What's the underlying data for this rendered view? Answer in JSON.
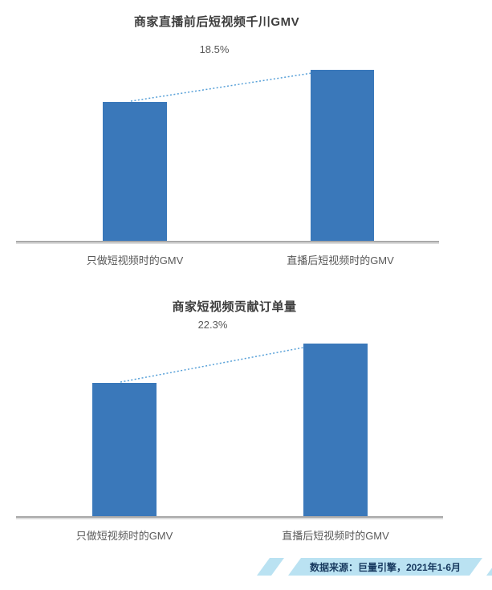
{
  "chart_data": [
    {
      "type": "bar",
      "title": "商家直播前后短视频千川GMV",
      "annotation": "18.5%",
      "categories": [
        "只做短视频时的GMV",
        "直播后短视频时的GMV"
      ],
      "values": [
        100,
        123
      ],
      "value_basis": "relative index estimated from bar heights; first bar = 100; y-axis hidden",
      "legend": "none",
      "grid": false,
      "connector": "dotted line rising from bar 1 top to bar 2 top"
    },
    {
      "type": "bar",
      "title": "商家短视频贡献订单量",
      "annotation": "22.3%",
      "categories": [
        "只做短视频时的GMV",
        "直播后短视频时的GMV"
      ],
      "values": [
        100,
        129
      ],
      "value_basis": "relative index estimated from bar heights; first bar = 100; y-axis hidden",
      "legend": "none",
      "grid": false,
      "connector": "dotted line rising from bar 1 top to bar 2 top"
    }
  ],
  "footer": {
    "source_text": "数据来源：巨量引擎，2021年1-6月"
  },
  "colors": {
    "bar": "#3a78ba",
    "dotted_line": "#57a0d8",
    "axis": "#a9a9a9",
    "title": "#3d3d3d",
    "label": "#595959",
    "ribbon_bg": "#bae2f2",
    "ribbon_text": "#17395f"
  }
}
